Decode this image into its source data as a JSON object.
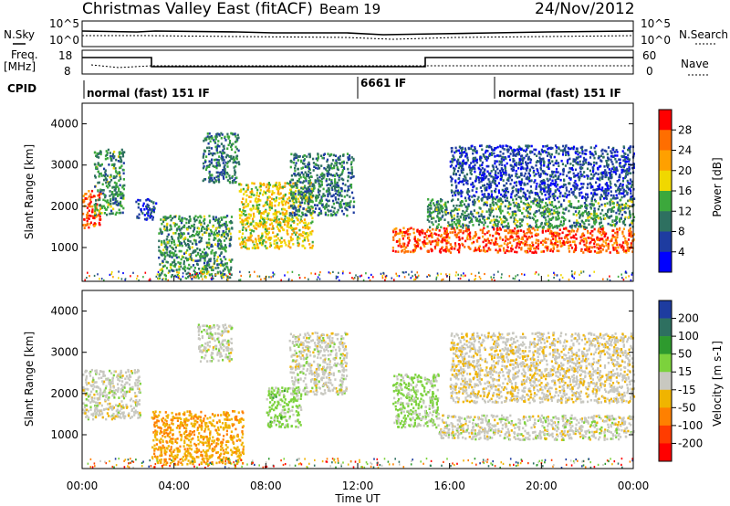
{
  "header": {
    "station": "Christmas Valley East (fitACF)",
    "beam": "Beam 19",
    "date": "24/Nov/2012"
  },
  "strip_labels": {
    "nsky": "N.Sky",
    "nsky_ticks": [
      "10^5",
      "10^0"
    ],
    "nsearch": "N.Search",
    "nsearch_ticks": [
      "10^5",
      "10^0"
    ],
    "freq": "Freq.",
    "freq_unit": "[MHz]",
    "freq_ticks": [
      "18",
      "8"
    ],
    "nave": "Nave",
    "nave_ticks": [
      "60",
      "0"
    ],
    "cpid": "CPID"
  },
  "cpid_segments": [
    "normal (fast) 151 IF",
    "6661 IF",
    "normal (fast) 151 IF"
  ],
  "axes": {
    "ylabel": "Slant Range [km]",
    "xlabel": "Time UT",
    "yticks": [
      "1000",
      "2000",
      "3000",
      "4000"
    ],
    "xticks": [
      "00:00",
      "04:00",
      "08:00",
      "12:00",
      "16:00",
      "20:00",
      "00:00"
    ]
  },
  "colorbars": {
    "power": {
      "label": "Power [dB]",
      "ticks": [
        "28",
        "24",
        "20",
        "16",
        "12",
        "8",
        "4"
      ],
      "colors": [
        "#ff0000",
        "#ff6e00",
        "#ffa000",
        "#f0d800",
        "#3ca83c",
        "#2e7060",
        "#1e3ca0",
        "#0000ff"
      ]
    },
    "velocity": {
      "label": "Velocity [m s-1]",
      "ticks": [
        "200",
        "100",
        "50",
        "15",
        "-15",
        "-50",
        "-100",
        "-200"
      ],
      "colors": [
        "#1e3ca0",
        "#2e7060",
        "#2e9a2e",
        "#7cd23c",
        "#c8c8c0",
        "#f0b400",
        "#ff8000",
        "#ff3c00",
        "#ff0000"
      ]
    }
  },
  "chart_data": [
    {
      "type": "heatmap",
      "title": "Power",
      "xlabel": "Time UT",
      "ylabel": "Slant Range [km]",
      "xlim": [
        "00:00",
        "24:00"
      ],
      "ylim": [
        180,
        4500
      ],
      "zlabel": "Power [dB]",
      "zlim": [
        0,
        32
      ],
      "regions": [
        {
          "t": [
            0.0,
            0.8
          ],
          "r": [
            1500,
            2400
          ],
          "value": 27
        },
        {
          "t": [
            0.5,
            1.8
          ],
          "r": [
            1800,
            3400
          ],
          "value": 12
        },
        {
          "t": [
            2.3,
            3.2
          ],
          "r": [
            1700,
            2200
          ],
          "value": 6
        },
        {
          "t": [
            3.3,
            6.5
          ],
          "r": [
            250,
            1800
          ],
          "value": 12
        },
        {
          "t": [
            5.2,
            6.8
          ],
          "r": [
            2600,
            3800
          ],
          "value": 10
        },
        {
          "t": [
            6.8,
            10.0
          ],
          "r": [
            1000,
            2600
          ],
          "value": 18
        },
        {
          "t": [
            9.0,
            11.8
          ],
          "r": [
            1800,
            3300
          ],
          "value": 10
        },
        {
          "t": [
            13.5,
            24.0
          ],
          "r": [
            900,
            1500
          ],
          "value": 27
        },
        {
          "t": [
            15.0,
            24.0
          ],
          "r": [
            1500,
            2200
          ],
          "value": 12
        },
        {
          "t": [
            16.0,
            24.0
          ],
          "r": [
            2200,
            3500
          ],
          "value": 6
        }
      ]
    },
    {
      "type": "heatmap",
      "title": "Velocity",
      "xlabel": "Time UT",
      "ylabel": "Slant Range [km]",
      "xlim": [
        "00:00",
        "24:00"
      ],
      "ylim": [
        180,
        4500
      ],
      "zlabel": "Velocity [m s-1]",
      "zlim": [
        -200,
        200
      ],
      "regions": [
        {
          "t": [
            0.0,
            2.5
          ],
          "r": [
            1400,
            2600
          ],
          "value": 0
        },
        {
          "t": [
            3.0,
            7.0
          ],
          "r": [
            300,
            1600
          ],
          "value": -60
        },
        {
          "t": [
            5.0,
            6.5
          ],
          "r": [
            2800,
            3700
          ],
          "value": 5
        },
        {
          "t": [
            8.0,
            9.5
          ],
          "r": [
            1200,
            2200
          ],
          "value": 40
        },
        {
          "t": [
            9.0,
            11.5
          ],
          "r": [
            2000,
            3500
          ],
          "value": 0
        },
        {
          "t": [
            13.5,
            15.5
          ],
          "r": [
            1200,
            2500
          ],
          "value": 30
        },
        {
          "t": [
            15.5,
            24.0
          ],
          "r": [
            900,
            1500
          ],
          "value": 0
        },
        {
          "t": [
            16.0,
            24.0
          ],
          "r": [
            1800,
            3500
          ],
          "value": -10
        }
      ]
    }
  ]
}
